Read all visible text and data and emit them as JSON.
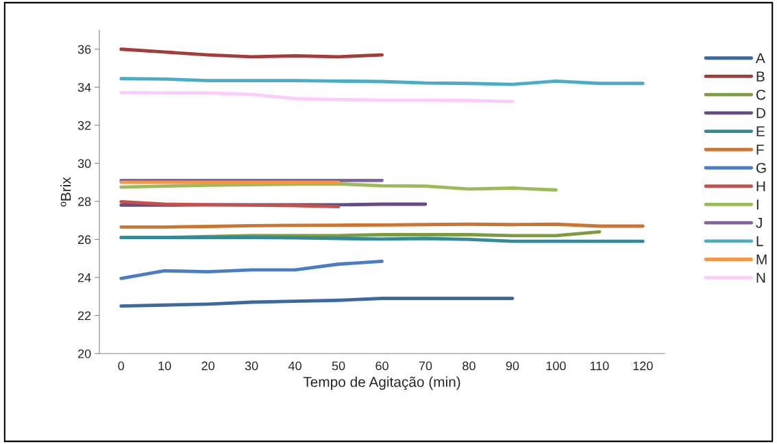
{
  "chart_data": {
    "type": "line",
    "xlabel": "Tempo de Agitação (min)",
    "ylabel": "ºBrix",
    "categories": [
      "0",
      "10",
      "20",
      "30",
      "40",
      "50",
      "60",
      "70",
      "80",
      "90",
      "100",
      "110",
      "120"
    ],
    "ylim": [
      20,
      37
    ],
    "yticks": [
      20,
      22,
      24,
      26,
      28,
      30,
      32,
      34,
      36
    ],
    "grid": false,
    "legend": "right",
    "marker": "none",
    "line_style": "solid",
    "series": [
      {
        "name": "A",
        "color": "#3c6aa0",
        "values": [
          22.5,
          22.55,
          22.6,
          22.7,
          22.75,
          22.8,
          22.9,
          22.9,
          22.9,
          22.9,
          null,
          null,
          null
        ]
      },
      {
        "name": "B",
        "color": "#a33d3a",
        "values": [
          36.0,
          35.85,
          35.7,
          35.6,
          35.65,
          35.6,
          35.7,
          null,
          null,
          null,
          null,
          null,
          null
        ]
      },
      {
        "name": "C",
        "color": "#7e9b3f",
        "values": [
          26.1,
          26.1,
          26.15,
          26.2,
          26.2,
          26.2,
          26.25,
          26.25,
          26.25,
          26.2,
          26.2,
          26.4,
          null
        ]
      },
      {
        "name": "D",
        "color": "#634d83",
        "values": [
          27.8,
          27.8,
          27.82,
          27.82,
          27.82,
          27.82,
          27.85,
          27.85,
          null,
          null,
          null,
          null,
          null
        ]
      },
      {
        "name": "E",
        "color": "#31899e",
        "values": [
          26.1,
          26.1,
          26.1,
          26.1,
          26.08,
          26.05,
          26.02,
          26.05,
          26.0,
          25.9,
          25.9,
          25.9,
          25.9
        ]
      },
      {
        "name": "F",
        "color": "#cc7432",
        "values": [
          26.65,
          26.65,
          26.68,
          26.72,
          26.74,
          26.75,
          26.76,
          26.78,
          26.8,
          26.78,
          26.8,
          26.7,
          26.7
        ]
      },
      {
        "name": "G",
        "color": "#4a7ec4",
        "values": [
          23.95,
          24.35,
          24.3,
          24.4,
          24.4,
          24.7,
          24.85,
          null,
          null,
          null,
          null,
          null,
          null
        ]
      },
      {
        "name": "H",
        "color": "#c5504c",
        "values": [
          27.98,
          27.85,
          27.82,
          27.8,
          27.78,
          27.72,
          null,
          null,
          null,
          null,
          null,
          null,
          null
        ]
      },
      {
        "name": "I",
        "color": "#9bbb59",
        "values": [
          28.75,
          28.8,
          28.85,
          28.88,
          28.9,
          28.92,
          28.82,
          28.8,
          28.65,
          28.7,
          28.6,
          null,
          null
        ]
      },
      {
        "name": "J",
        "color": "#8064a2",
        "values": [
          29.1,
          29.1,
          29.1,
          29.1,
          29.1,
          29.1,
          29.1,
          null,
          null,
          null,
          null,
          null,
          null
        ]
      },
      {
        "name": "L",
        "color": "#4bacc6",
        "values": [
          34.45,
          34.43,
          34.35,
          34.35,
          34.35,
          34.32,
          34.3,
          34.22,
          34.2,
          34.15,
          34.32,
          34.2,
          34.2
        ]
      },
      {
        "name": "M",
        "color": "#f79646",
        "values": [
          29.0,
          29.0,
          29.0,
          29.0,
          29.0,
          29.0,
          null,
          null,
          null,
          null,
          null,
          null,
          null
        ]
      },
      {
        "name": "N",
        "color": "#fdcbfd",
        "values": [
          33.72,
          33.7,
          33.7,
          33.62,
          33.4,
          33.35,
          33.32,
          33.32,
          33.3,
          33.25,
          null,
          null,
          null
        ]
      }
    ]
  }
}
